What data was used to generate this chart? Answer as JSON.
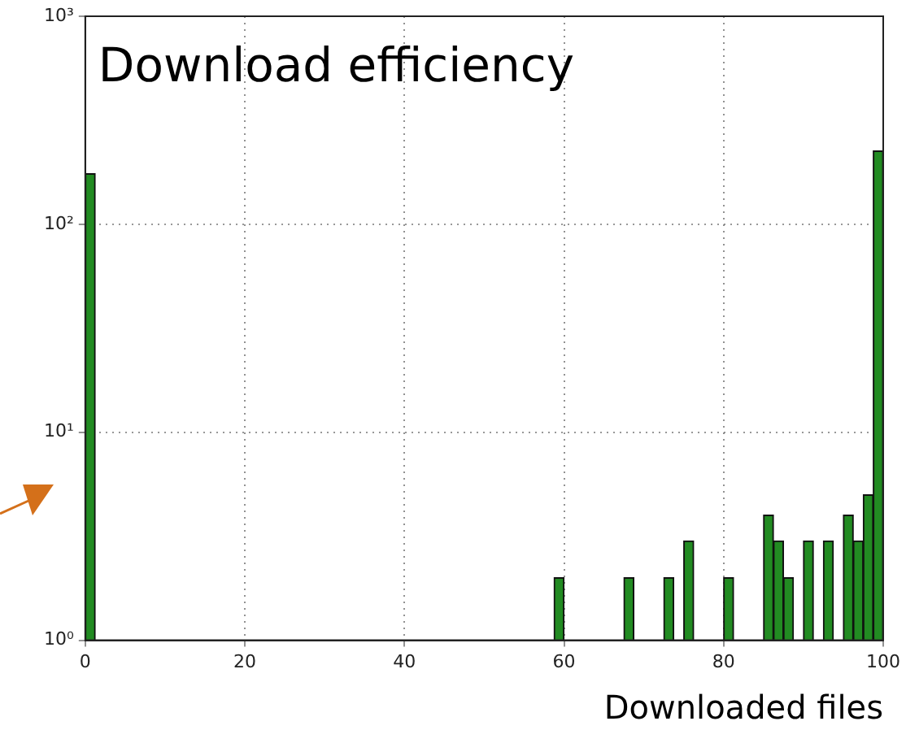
{
  "chart_data": {
    "type": "histogram",
    "title": "Download efficiency",
    "xlabel": "Downloaded files",
    "bins": [
      0,
      1.25,
      2.5,
      3.75,
      5,
      6.25,
      7.5,
      8.75,
      10,
      11.25,
      12.5,
      13.75,
      15,
      16.25,
      17.5,
      18.75,
      20,
      21.25,
      22.5,
      23.75,
      25,
      26.25,
      27.5,
      28.75,
      30,
      31.25,
      32.5,
      33.75,
      35,
      36.25,
      37.5,
      38.75,
      40,
      41.25,
      42.5,
      43.75,
      45,
      46.25,
      47.5,
      48.75,
      50,
      51.25,
      52.5,
      53.75,
      55,
      56.25,
      57.5,
      58.75,
      60,
      61.25,
      62.5,
      63.75,
      65,
      66.25,
      67.5,
      68.75,
      70,
      71.25,
      72.5,
      73.75,
      75,
      76.25,
      77.5,
      78.75,
      80,
      81.25,
      82.5,
      83.75,
      85,
      86.25,
      87.5,
      88.75,
      90,
      91.25,
      92.5,
      93.75,
      95,
      96.25,
      97.5,
      98.75,
      100
    ],
    "values": [
      175,
      null,
      null,
      null,
      null,
      null,
      null,
      null,
      null,
      null,
      null,
      null,
      null,
      null,
      null,
      null,
      null,
      null,
      null,
      null,
      null,
      null,
      null,
      null,
      null,
      null,
      null,
      null,
      null,
      null,
      null,
      null,
      null,
      null,
      null,
      null,
      null,
      null,
      null,
      null,
      null,
      null,
      null,
      null,
      null,
      null,
      null,
      2,
      null,
      null,
      null,
      null,
      null,
      null,
      2,
      null,
      null,
      null,
      2,
      null,
      3,
      null,
      null,
      null,
      2,
      null,
      null,
      null,
      4,
      3,
      2,
      null,
      3,
      null,
      3,
      null,
      4,
      3,
      5,
      225
    ],
    "color": "#228b22",
    "log": "y",
    "grid": true,
    "xlim": [
      0,
      100
    ],
    "xticks": [
      0,
      20,
      40,
      60,
      80,
      100
    ],
    "ylim": [
      1,
      1000
    ],
    "yticks": [
      {
        "value": 1,
        "label": "10⁰"
      },
      {
        "value": 10,
        "label": "10¹"
      },
      {
        "value": 100,
        "label": "10²"
      },
      {
        "value": 1000,
        "label": "10³"
      }
    ]
  }
}
